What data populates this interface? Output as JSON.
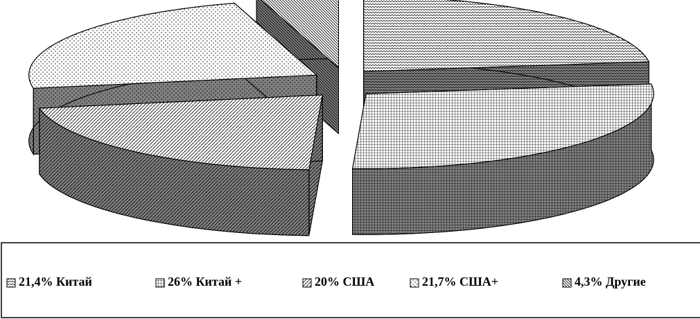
{
  "chart_data": {
    "type": "pie3d",
    "categories": [
      "Китай",
      "Китай +",
      "США",
      "США+",
      "Другие"
    ],
    "values": [
      21.4,
      26,
      20,
      21.7,
      4.3
    ],
    "value_labels": [
      "21,4%",
      "26%",
      "20%",
      "21,7%",
      "4,3%"
    ],
    "legend": "bottom"
  }
}
